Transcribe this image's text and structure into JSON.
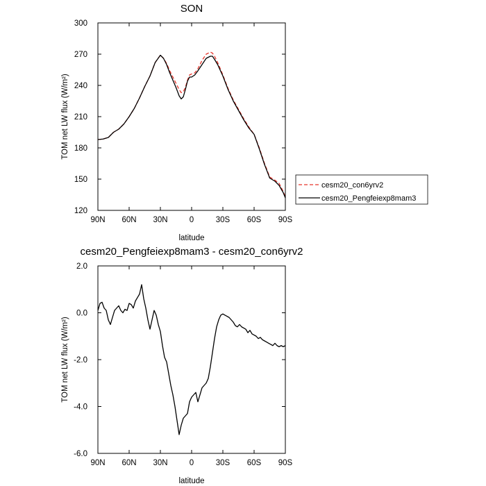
{
  "chart_data": [
    {
      "type": "line",
      "title": "SON",
      "xlabel": "latitude",
      "ylabel": "TOM net LW flux (W/m²)",
      "xlim": [
        -90,
        90
      ],
      "ylim": [
        120,
        300
      ],
      "xticks": [
        -90,
        -60,
        -30,
        0,
        30,
        60,
        90
      ],
      "xtick_labels": [
        "90N",
        "60N",
        "30N",
        "0",
        "30S",
        "60S",
        "90S"
      ],
      "yticks": [
        120,
        150,
        180,
        210,
        240,
        270,
        300
      ],
      "ytick_labels": [
        "120",
        "150",
        "180",
        "210",
        "240",
        "270",
        "300"
      ],
      "grid": false,
      "legend_position": "right",
      "series": [
        {
          "name": "cesm20_con6yrv2",
          "color": "#e8352b",
          "dash": true,
          "x": [
            -90,
            -85,
            -80,
            -75,
            -70,
            -65,
            -60,
            -55,
            -50,
            -45,
            -40,
            -35,
            -30,
            -27,
            -24,
            -21,
            -18,
            -15,
            -12,
            -10,
            -8,
            -6,
            -4,
            -2,
            0,
            3,
            6,
            10,
            14,
            18,
            20,
            22,
            25,
            30,
            35,
            40,
            45,
            50,
            55,
            60,
            65,
            70,
            75,
            80,
            84,
            88,
            90
          ],
          "values": [
            188,
            188.5,
            190,
            195,
            198,
            203,
            210,
            218,
            228,
            239,
            249,
            262,
            269,
            266,
            261,
            254,
            248,
            242,
            236,
            233,
            234,
            238,
            245,
            250,
            251,
            252,
            256,
            264,
            270,
            272,
            271,
            268,
            262,
            250,
            237,
            226,
            217,
            208,
            200,
            193,
            180,
            165,
            152,
            149,
            146,
            138,
            133
          ]
        },
        {
          "name": "cesm20_Pengfeiexp8mam3",
          "color": "#000000",
          "dash": false,
          "x": [
            -90,
            -85,
            -80,
            -75,
            -70,
            -65,
            -60,
            -55,
            -50,
            -45,
            -40,
            -35,
            -30,
            -27,
            -24,
            -21,
            -18,
            -15,
            -12,
            -10,
            -8,
            -6,
            -4,
            -2,
            0,
            3,
            6,
            10,
            14,
            18,
            20,
            22,
            25,
            30,
            35,
            40,
            45,
            50,
            55,
            60,
            65,
            70,
            75,
            80,
            84,
            88,
            90
          ],
          "values": [
            188,
            188.5,
            190,
            195,
            198,
            203,
            210,
            218,
            228,
            239,
            249,
            262,
            269,
            266,
            260,
            252,
            245,
            238,
            230,
            227,
            229,
            236,
            244,
            248,
            248,
            250,
            254,
            260,
            266,
            268,
            268,
            265,
            260,
            249,
            236,
            225,
            216,
            207,
            199,
            193,
            179,
            164,
            151,
            148,
            144,
            137,
            132
          ]
        }
      ]
    },
    {
      "type": "line",
      "title": "cesm20_Pengfeiexp8mam3 - cesm20_con6yrv2",
      "xlabel": "latitude",
      "ylabel": "TOM net LW flux (W/m²)",
      "xlim": [
        -90,
        90
      ],
      "ylim": [
        -6,
        2
      ],
      "xticks": [
        -90,
        -60,
        -30,
        0,
        30,
        60,
        90
      ],
      "xtick_labels": [
        "90N",
        "60N",
        "30N",
        "0",
        "30S",
        "60S",
        "90S"
      ],
      "yticks": [
        -6,
        -4,
        -2,
        0,
        2
      ],
      "ytick_labels": [
        "-6.0",
        "-4.0",
        "-2.0",
        "0.0",
        "2.0"
      ],
      "grid": false,
      "series": [
        {
          "color": "#000000",
          "x": [
            -90,
            -88,
            -86,
            -84,
            -82,
            -80,
            -78,
            -76,
            -74,
            -72,
            -70,
            -68,
            -66,
            -64,
            -62,
            -60,
            -58,
            -56,
            -54,
            -52,
            -50,
            -48,
            -46,
            -44,
            -42,
            -40,
            -38,
            -36,
            -34,
            -32,
            -30,
            -28,
            -26,
            -24,
            -22,
            -20,
            -18,
            -16,
            -14,
            -12,
            -10,
            -8,
            -6,
            -4,
            -2,
            0,
            2,
            4,
            6,
            8,
            10,
            12,
            14,
            16,
            18,
            20,
            22,
            24,
            26,
            28,
            30,
            32,
            34,
            36,
            38,
            40,
            42,
            44,
            46,
            48,
            50,
            52,
            54,
            56,
            58,
            60,
            62,
            64,
            66,
            68,
            70,
            72,
            74,
            76,
            78,
            80,
            82,
            84,
            86,
            88,
            90
          ],
          "values": [
            0.1,
            0.4,
            0.45,
            0.2,
            0.1,
            -0.3,
            -0.5,
            -0.2,
            0.1,
            0.2,
            0.3,
            0.1,
            0.0,
            0.15,
            0.1,
            0.4,
            0.35,
            0.2,
            0.5,
            0.65,
            0.8,
            1.2,
            0.6,
            0.2,
            -0.3,
            -0.7,
            -0.3,
            0.1,
            -0.1,
            -0.5,
            -0.8,
            -1.4,
            -1.9,
            -2.1,
            -2.6,
            -3.1,
            -3.5,
            -4.0,
            -4.6,
            -5.2,
            -4.8,
            -4.5,
            -4.4,
            -4.3,
            -3.8,
            -3.6,
            -3.5,
            -3.4,
            -3.8,
            -3.5,
            -3.2,
            -3.1,
            -3.0,
            -2.8,
            -2.3,
            -1.7,
            -1.1,
            -0.6,
            -0.3,
            -0.1,
            -0.05,
            -0.1,
            -0.15,
            -0.2,
            -0.3,
            -0.4,
            -0.55,
            -0.6,
            -0.5,
            -0.6,
            -0.65,
            -0.7,
            -0.85,
            -0.75,
            -0.9,
            -0.95,
            -1.0,
            -1.1,
            -1.05,
            -1.15,
            -1.2,
            -1.25,
            -1.3,
            -1.35,
            -1.4,
            -1.3,
            -1.4,
            -1.45,
            -1.4,
            -1.45,
            -1.4
          ]
        }
      ]
    }
  ]
}
